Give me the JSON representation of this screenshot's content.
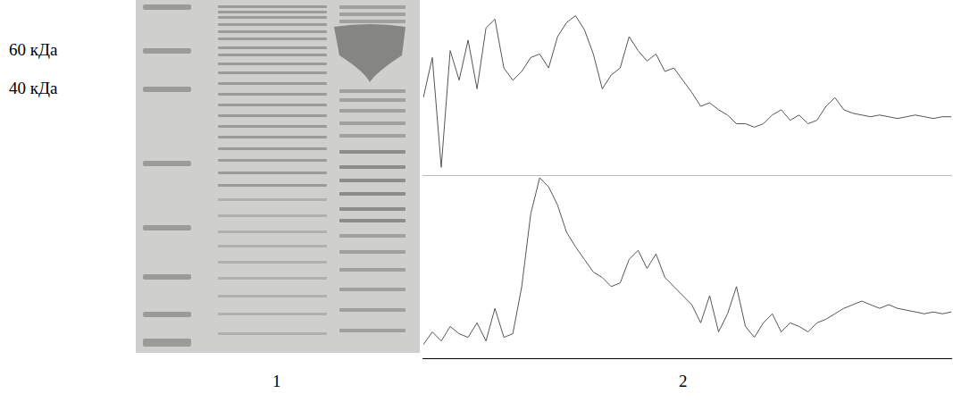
{
  "figure": {
    "marker_labels": [
      "60 кДа",
      "40 кДа"
    ],
    "panel_labels": [
      "1",
      "2"
    ]
  },
  "chart_data": [
    {
      "type": "line",
      "tick_labels": false,
      "grid": false,
      "xlim": [
        0,
        59
      ],
      "ylim": [
        0,
        100
      ],
      "x": [
        0,
        1,
        2,
        3,
        4,
        5,
        6,
        7,
        8,
        9,
        10,
        11,
        12,
        13,
        14,
        15,
        16,
        17,
        18,
        19,
        20,
        21,
        22,
        23,
        24,
        25,
        26,
        27,
        28,
        29,
        30,
        31,
        32,
        33,
        34,
        35,
        36,
        37,
        38,
        39,
        40,
        41,
        42,
        43,
        44,
        45,
        46,
        47,
        48,
        49,
        50,
        51,
        52,
        53,
        54,
        55,
        56,
        57,
        58,
        59
      ],
      "series": [
        {
          "color": "#555555",
          "line_style": "solid",
          "values": [
            45,
            68,
            5,
            72,
            55,
            78,
            50,
            85,
            90,
            62,
            55,
            60,
            68,
            70,
            62,
            80,
            88,
            92,
            84,
            70,
            50,
            58,
            62,
            80,
            72,
            66,
            70,
            60,
            62,
            55,
            48,
            40,
            42,
            38,
            35,
            30,
            30,
            28,
            30,
            35,
            38,
            32,
            35,
            30,
            32,
            40,
            45,
            38,
            36,
            35,
            34,
            35,
            34,
            33,
            34,
            35,
            34,
            33,
            34,
            34
          ]
        }
      ]
    },
    {
      "type": "line",
      "tick_labels": false,
      "grid": false,
      "xlim": [
        0,
        59
      ],
      "ylim": [
        0,
        100
      ],
      "x": [
        0,
        1,
        2,
        3,
        4,
        5,
        6,
        7,
        8,
        9,
        10,
        11,
        12,
        13,
        14,
        15,
        16,
        17,
        18,
        19,
        20,
        21,
        22,
        23,
        24,
        25,
        26,
        27,
        28,
        29,
        30,
        31,
        32,
        33,
        34,
        35,
        36,
        37,
        38,
        39,
        40,
        41,
        42,
        43,
        44,
        45,
        46,
        47,
        48,
        49,
        50,
        51,
        52,
        53,
        54,
        55,
        56,
        57,
        58,
        59
      ],
      "series": [
        {
          "color": "#555555",
          "line_style": "solid",
          "values": [
            8,
            15,
            10,
            18,
            14,
            12,
            20,
            10,
            28,
            12,
            14,
            40,
            80,
            100,
            95,
            85,
            70,
            62,
            55,
            48,
            45,
            40,
            42,
            55,
            60,
            50,
            58,
            45,
            40,
            35,
            30,
            20,
            35,
            15,
            25,
            40,
            18,
            12,
            20,
            25,
            15,
            20,
            18,
            15,
            20,
            22,
            25,
            28,
            30,
            32,
            30,
            28,
            30,
            28,
            27,
            26,
            25,
            26,
            25,
            26
          ]
        }
      ]
    }
  ]
}
